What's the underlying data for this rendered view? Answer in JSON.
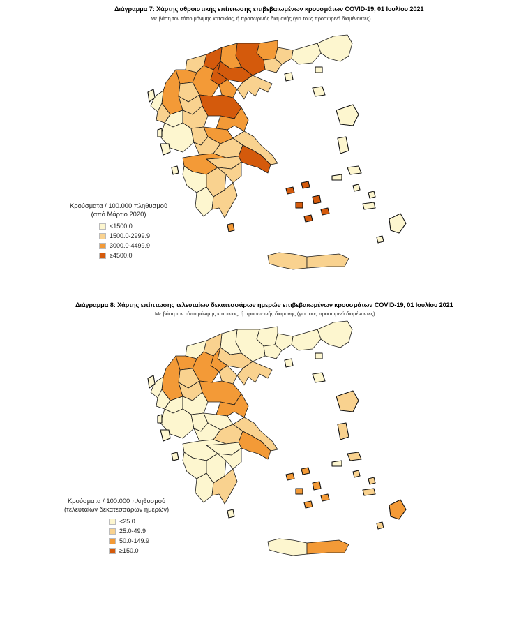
{
  "colors": {
    "c1": "#fdf6cf",
    "c2": "#f9d28f",
    "c3": "#f39a37",
    "c4": "#d45a0c"
  },
  "maps": [
    {
      "title": "Διάγραμμα 7: Χάρτης αθροιστικής επίπτωσης επιβεβαιωμένων κρουσμάτων COVID-19, 01 Ιουλίου 2021",
      "subtitle": "Με βάση τον τόπο μόνιμης κατοικίας, ή προσωρινής διαμονής (για τους προσωρινά διαμένοντες)",
      "legend_title_1": "Κρούσματα / 100.000 πληθυσμού",
      "legend_title_2": "(από Μάρτιο 2020)",
      "legend": [
        "<1500.0",
        "1500.0-2999.9",
        "3000.0-4499.9",
        "≥4500.0"
      ]
    },
    {
      "title": "Διάγραμμα 8: Χάρτης επίπτωσης τελευταίων δεκατεσσάρων ημερών επιβεβαιωμένων κρουσμάτων COVID-19, 01 Ιουλίου 2021",
      "subtitle": "Με βάση τον τόπο μόνιμης κατοικίας, ή προσωρινής διαμονής (για τους προσωρινά διαμένοντες)",
      "legend_title_1": "Κρούσματα / 100.000 πληθυσμού",
      "legend_title_2": "(τελευταίων δεκατεσσάρων ημερών)",
      "legend": [
        "<25.0",
        "25.0-49.9",
        "50.0-149.9",
        "≥150.0"
      ]
    }
  ],
  "region_classes": {
    "map1": {
      "evros": 1,
      "rodopi": 1,
      "xanthi": 2,
      "kavala": 2,
      "drama": 3,
      "serres": 4,
      "kilkis": 3,
      "thessaloniki": 4,
      "chalkidiki": 2,
      "pella": 4,
      "imathia": 4,
      "pieria": 3,
      "florina": 2,
      "kastoria": 3,
      "kozani": 3,
      "grevena": 2,
      "larisa": 4,
      "magnesia": 3,
      "trikala": 2,
      "karditsa": 2,
      "ioannina": 3,
      "thesprotia": 1,
      "preveza": 2,
      "arta": 1,
      "aitoloakarnania": 1,
      "evrytania": 2,
      "fthiotida": 3,
      "fokida": 2,
      "viotia": 2,
      "evia": 2,
      "attiki": 4,
      "korinthia": 2,
      "achaia": 3,
      "ilia": 1,
      "arkadia": 2,
      "argolida": 2,
      "messinia": 1,
      "lakonia": 2,
      "crete_w": 2,
      "crete_e": 2,
      "kerkyra": 1,
      "lefkada": 1,
      "kefalonia": 1,
      "zakynthos": 1,
      "thasos": 1,
      "samothraki": 1,
      "limnos": 1,
      "lesvos": 1,
      "chios": 1,
      "samos": 1,
      "ikaria": 1,
      "rodos": 1,
      "kos": 1,
      "kythira": 3,
      "cyclades": 4,
      "dodecanese": 1
    },
    "map2": {
      "evros": 1,
      "rodopi": 1,
      "xanthi": 1,
      "kavala": 1,
      "drama": 1,
      "serres": 1,
      "kilkis": 1,
      "thessaloniki": 2,
      "chalkidiki": 2,
      "pella": 2,
      "imathia": 3,
      "pieria": 2,
      "florina": 1,
      "kastoria": 3,
      "kozani": 3,
      "grevena": 2,
      "larisa": 3,
      "magnesia": 3,
      "trikala": 2,
      "karditsa": 1,
      "ioannina": 3,
      "thesprotia": 1,
      "preveza": 1,
      "arta": 1,
      "aitoloakarnania": 1,
      "evrytania": 1,
      "fthiotida": 1,
      "fokida": 1,
      "viotia": 2,
      "evia": 2,
      "attiki": 3,
      "korinthia": 1,
      "achaia": 1,
      "ilia": 1,
      "arkadia": 1,
      "argolida": 1,
      "messinia": 1,
      "lakonia": 2,
      "crete_w": 1,
      "crete_e": 3,
      "kerkyra": 1,
      "lefkada": 1,
      "kefalonia": 1,
      "zakynthos": 1,
      "thasos": 1,
      "samothraki": 1,
      "limnos": 1,
      "lesvos": 2,
      "chios": 2,
      "samos": 2,
      "ikaria": 1,
      "rodos": 3,
      "kos": 2,
      "kythira": 1,
      "cyclades": 3,
      "dodecanese": 2
    }
  }
}
